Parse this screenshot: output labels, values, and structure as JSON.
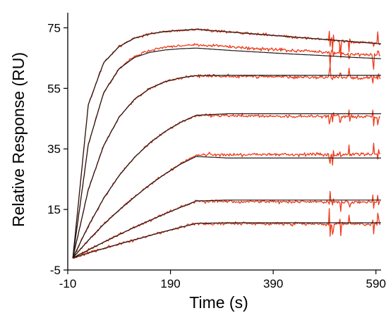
{
  "chart_data": {
    "type": "line",
    "xlabel": "Time (s)",
    "ylabel": "Relative Response (RU)",
    "xlim": [
      -10,
      600
    ],
    "ylim": [
      -5,
      80
    ],
    "xticks": [
      -10,
      190,
      390,
      590
    ],
    "yticks": [
      -5,
      15,
      35,
      55,
      75
    ],
    "data_color": "#ee3a1b",
    "fit_color": "#1a1a1a",
    "phases": {
      "association_start": 0,
      "dissociation_start": 240,
      "end": 600
    },
    "series": [
      {
        "kind": "measured",
        "t": [
          0,
          30,
          60,
          90,
          120,
          150,
          180,
          210,
          240,
          300,
          360,
          420,
          480,
          540,
          600
        ],
        "values": [
          -1,
          49.6,
          63.5,
          68.8,
          71.6,
          73,
          73.8,
          74.2,
          74.5,
          73.7,
          72.9,
          72.1,
          71.3,
          70.5,
          69.7
        ]
      },
      {
        "kind": "fit",
        "t": [
          0,
          30,
          60,
          90,
          120,
          150,
          180,
          210,
          240,
          300,
          360,
          420,
          480,
          540,
          600
        ],
        "values": [
          -1,
          49.6,
          63.5,
          68.8,
          71.6,
          73,
          73.8,
          74.2,
          74.5,
          73.7,
          72.9,
          72.1,
          71.3,
          70.5,
          69.7
        ]
      },
      {
        "kind": "measured",
        "t": [
          0,
          30,
          60,
          90,
          120,
          150,
          180,
          210,
          240,
          300,
          360,
          420,
          480,
          540,
          600
        ],
        "values": [
          -1,
          36.4,
          53.6,
          61.5,
          65.6,
          67.6,
          68.6,
          69.1,
          69.4,
          68.7,
          68.1,
          67.6,
          67,
          66.4,
          65.9
        ]
      },
      {
        "kind": "fit",
        "t": [
          0,
          30,
          60,
          90,
          120,
          150,
          180,
          210,
          240,
          300,
          360,
          420,
          480,
          540,
          600
        ],
        "values": [
          -1,
          36.4,
          53.6,
          61.5,
          65.2,
          66.9,
          67.7,
          68.1,
          68.3,
          67.6,
          67,
          66.4,
          65.9,
          65.3,
          64.8
        ]
      },
      {
        "kind": "measured",
        "t": [
          0,
          30,
          60,
          90,
          120,
          150,
          180,
          210,
          240,
          300,
          360,
          420,
          480,
          540,
          600
        ],
        "values": [
          -1,
          21.5,
          36.1,
          45.5,
          51.4,
          55,
          57.2,
          58.5,
          59.2,
          59,
          58.9,
          58.8,
          58.7,
          58.6,
          58.5
        ]
      },
      {
        "kind": "fit",
        "t": [
          0,
          30,
          60,
          90,
          120,
          150,
          180,
          210,
          240,
          300,
          360,
          420,
          480,
          540,
          600
        ],
        "values": [
          -1,
          21.5,
          36.1,
          45.5,
          51.4,
          55,
          57.2,
          58.5,
          59.2,
          59.3,
          59.3,
          59.3,
          59.3,
          59.3,
          59.3
        ]
      },
      {
        "kind": "measured",
        "t": [
          0,
          30,
          60,
          90,
          120,
          150,
          180,
          210,
          240,
          300,
          360,
          420,
          480,
          540,
          600
        ],
        "values": [
          -1,
          9.5,
          18.7,
          26.2,
          32.2,
          37,
          40.8,
          43.8,
          46.1,
          46,
          45.9,
          45.8,
          45.8,
          45.7,
          45.6
        ]
      },
      {
        "kind": "fit",
        "t": [
          0,
          30,
          60,
          90,
          120,
          150,
          180,
          210,
          240,
          300,
          360,
          420,
          480,
          540,
          600
        ],
        "values": [
          -1,
          9.5,
          18.7,
          26.2,
          32.2,
          37,
          40.8,
          43.8,
          46.1,
          46.6,
          46.6,
          46.6,
          46.6,
          46.6,
          46.6
        ]
      },
      {
        "kind": "measured",
        "t": [
          0,
          30,
          60,
          90,
          120,
          150,
          180,
          210,
          240,
          300,
          360,
          420,
          480,
          540,
          600
        ],
        "values": [
          -1,
          4.8,
          10.1,
          14.8,
          19.1,
          23.2,
          26.8,
          30.1,
          33.1,
          33.1,
          33.1,
          33.1,
          33.1,
          33.1,
          33.1
        ]
      },
      {
        "kind": "fit",
        "t": [
          0,
          30,
          60,
          90,
          120,
          150,
          180,
          210,
          240,
          300,
          360,
          420,
          480,
          540,
          600
        ],
        "values": [
          -1,
          4.8,
          10.1,
          14.8,
          19.1,
          23.2,
          26.8,
          30,
          32.5,
          32,
          32,
          32,
          32,
          32,
          32
        ]
      },
      {
        "kind": "measured",
        "t": [
          0,
          30,
          60,
          90,
          120,
          150,
          180,
          210,
          240,
          300,
          360,
          420,
          480,
          540,
          600
        ],
        "values": [
          -1,
          1.6,
          4.2,
          6.7,
          9.1,
          11.4,
          13.6,
          15.7,
          17.8,
          17.6,
          17.6,
          17.5,
          17.5,
          17.4,
          17.4
        ]
      },
      {
        "kind": "fit",
        "t": [
          0,
          30,
          60,
          90,
          120,
          150,
          180,
          210,
          240,
          300,
          360,
          420,
          480,
          540,
          600
        ],
        "values": [
          -1,
          1.6,
          4.2,
          6.7,
          9.1,
          11.4,
          13.6,
          15.7,
          17.8,
          18.1,
          18.1,
          18.1,
          18.1,
          18.1,
          18.1
        ]
      },
      {
        "kind": "measured",
        "t": [
          0,
          30,
          60,
          90,
          120,
          150,
          180,
          210,
          240,
          300,
          360,
          420,
          480,
          540,
          600
        ],
        "values": [
          -1,
          0.6,
          2.1,
          3.6,
          5,
          6.4,
          7.8,
          9.1,
          10.4,
          10.3,
          10.3,
          10.3,
          10.2,
          10.2,
          10.2
        ]
      },
      {
        "kind": "fit",
        "t": [
          0,
          30,
          60,
          90,
          120,
          150,
          180,
          210,
          240,
          300,
          360,
          420,
          480,
          540,
          600
        ],
        "values": [
          -1,
          0.6,
          2.1,
          3.6,
          5,
          6.4,
          7.8,
          9.1,
          10.4,
          10.6,
          10.6,
          10.6,
          10.6,
          10.6,
          10.6
        ]
      }
    ]
  }
}
